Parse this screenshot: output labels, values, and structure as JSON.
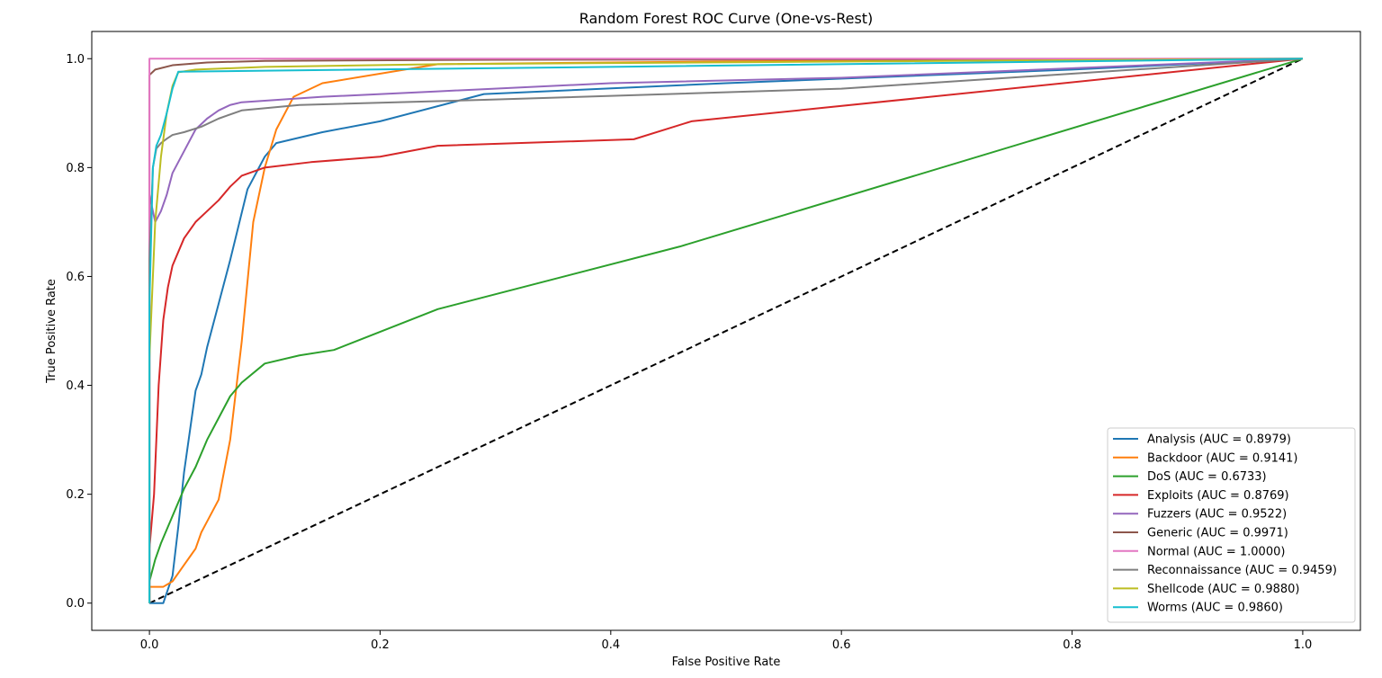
{
  "chart_data": {
    "type": "line",
    "title": "Random Forest ROC Curve (One-vs-Rest)",
    "xlabel": "False Positive Rate",
    "ylabel": "True Positive Rate",
    "xlim": [
      -0.05,
      1.05
    ],
    "ylim": [
      -0.05,
      1.05
    ],
    "xticks": [
      0.0,
      0.2,
      0.4,
      0.6,
      0.8,
      1.0
    ],
    "yticks": [
      0.0,
      0.2,
      0.4,
      0.6,
      0.8,
      1.0
    ],
    "xtick_labels": [
      "0.0",
      "0.2",
      "0.4",
      "0.6",
      "0.8",
      "1.0"
    ],
    "ytick_labels": [
      "0.0",
      "0.2",
      "0.4",
      "0.6",
      "0.8",
      "1.0"
    ],
    "grid": false,
    "legend_position": "lower-right",
    "series": [
      {
        "name": "Analysis (AUC = 0.8979)",
        "color": "#1f77b4",
        "x": [
          0,
          0.012,
          0.02,
          0.025,
          0.03,
          0.036,
          0.04,
          0.045,
          0.05,
          0.06,
          0.07,
          0.085,
          0.1,
          0.11,
          0.15,
          0.2,
          0.29,
          0.5,
          0.8,
          1.0
        ],
        "y": [
          0,
          0,
          0.05,
          0.14,
          0.24,
          0.33,
          0.39,
          0.42,
          0.47,
          0.55,
          0.63,
          0.76,
          0.82,
          0.845,
          0.865,
          0.885,
          0.935,
          0.955,
          0.98,
          1.0
        ]
      },
      {
        "name": "Backdoor (AUC = 0.9141)",
        "color": "#ff7f0e",
        "x": [
          0,
          0.0,
          0.012,
          0.02,
          0.03,
          0.035,
          0.04,
          0.045,
          0.05,
          0.055,
          0.06,
          0.07,
          0.08,
          0.09,
          0.1,
          0.11,
          0.125,
          0.15,
          0.25,
          0.5,
          1.0
        ],
        "y": [
          0,
          0.03,
          0.03,
          0.04,
          0.07,
          0.085,
          0.1,
          0.13,
          0.15,
          0.17,
          0.19,
          0.3,
          0.48,
          0.7,
          0.8,
          0.87,
          0.93,
          0.955,
          0.99,
          0.995,
          1.0
        ]
      },
      {
        "name": "DoS (AUC = 0.6733)",
        "color": "#2ca02c",
        "x": [
          0,
          0.0,
          0.005,
          0.01,
          0.02,
          0.03,
          0.04,
          0.05,
          0.06,
          0.07,
          0.08,
          0.1,
          0.13,
          0.16,
          0.19,
          0.25,
          0.46,
          1.0
        ],
        "y": [
          0,
          0.04,
          0.08,
          0.11,
          0.16,
          0.21,
          0.25,
          0.3,
          0.34,
          0.38,
          0.405,
          0.44,
          0.455,
          0.465,
          0.49,
          0.54,
          0.655,
          1.0
        ]
      },
      {
        "name": "Exploits (AUC = 0.8769)",
        "color": "#d62728",
        "x": [
          0,
          0.0,
          0.004,
          0.008,
          0.012,
          0.016,
          0.02,
          0.03,
          0.04,
          0.05,
          0.06,
          0.07,
          0.08,
          0.1,
          0.14,
          0.2,
          0.25,
          0.42,
          0.47,
          1.0
        ],
        "y": [
          0,
          0.1,
          0.2,
          0.4,
          0.52,
          0.58,
          0.62,
          0.67,
          0.7,
          0.72,
          0.74,
          0.765,
          0.785,
          0.8,
          0.81,
          0.82,
          0.84,
          0.852,
          0.885,
          1.0
        ]
      },
      {
        "name": "Fuzzers (AUC = 0.9522)",
        "color": "#9467bd",
        "x": [
          0,
          0.0,
          0.005,
          0.01,
          0.015,
          0.02,
          0.03,
          0.04,
          0.05,
          0.06,
          0.07,
          0.08,
          0.15,
          0.25,
          0.4,
          0.6,
          1.0
        ],
        "y": [
          0,
          0.75,
          0.7,
          0.72,
          0.75,
          0.79,
          0.83,
          0.87,
          0.89,
          0.905,
          0.915,
          0.92,
          0.93,
          0.94,
          0.955,
          0.965,
          1.0
        ]
      },
      {
        "name": "Generic (AUC = 0.9971)",
        "color": "#8c564b",
        "x": [
          0,
          0.0,
          0.005,
          0.02,
          0.05,
          0.1,
          0.3,
          1.0
        ],
        "y": [
          0,
          0.97,
          0.98,
          0.988,
          0.993,
          0.996,
          0.998,
          1.0
        ]
      },
      {
        "name": "Normal (AUC = 1.0000)",
        "color": "#e377c2",
        "x": [
          0,
          0.0,
          1.0
        ],
        "y": [
          0,
          1.0,
          1.0
        ]
      },
      {
        "name": "Reconnaissance (AUC = 0.9459)",
        "color": "#7f7f7f",
        "x": [
          0,
          0.0,
          0.003,
          0.006,
          0.01,
          0.015,
          0.02,
          0.03,
          0.045,
          0.06,
          0.08,
          0.13,
          0.3,
          0.6,
          1.0
        ],
        "y": [
          0,
          0.63,
          0.8,
          0.835,
          0.845,
          0.853,
          0.86,
          0.865,
          0.875,
          0.89,
          0.905,
          0.915,
          0.925,
          0.945,
          1.0
        ]
      },
      {
        "name": "Shellcode (AUC = 0.9880)",
        "color": "#bcbd22",
        "x": [
          0,
          0.0,
          0.005,
          0.01,
          0.015,
          0.02,
          0.025,
          0.04,
          0.1,
          0.25,
          1.0
        ],
        "y": [
          0,
          0.45,
          0.7,
          0.82,
          0.9,
          0.95,
          0.975,
          0.98,
          0.985,
          0.99,
          1.0
        ]
      },
      {
        "name": "Worms (AUC = 0.9860)",
        "color": "#17becf",
        "x": [
          0,
          0.0,
          0.003,
          0.006,
          0.01,
          0.015,
          0.02,
          0.025,
          0.1,
          0.4,
          1.0
        ],
        "y": [
          0,
          0.55,
          0.8,
          0.84,
          0.86,
          0.9,
          0.945,
          0.976,
          0.978,
          0.985,
          1.0
        ]
      }
    ],
    "reference_line": {
      "x": [
        0,
        1
      ],
      "y": [
        0,
        1
      ],
      "color": "#000000",
      "style": "dashed"
    }
  }
}
